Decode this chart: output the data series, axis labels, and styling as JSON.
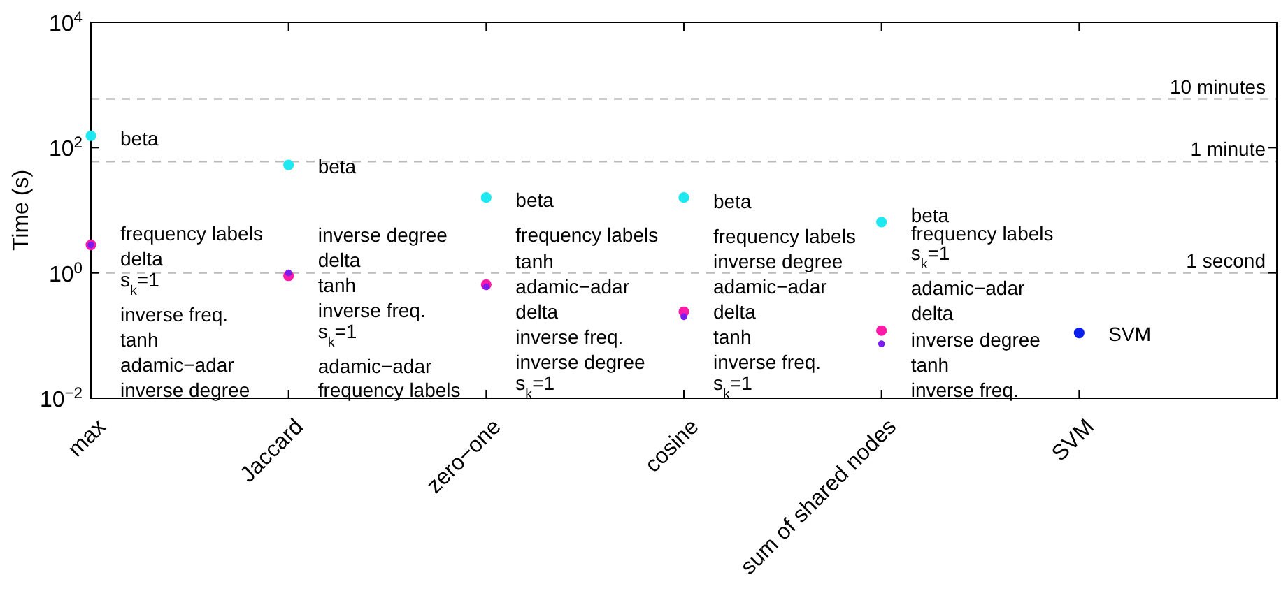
{
  "chart_data": {
    "type": "scatter",
    "ylabel": "Time (s)",
    "log": "y",
    "marker": "circle",
    "grid": false,
    "categories": [
      "max",
      "Jaccard",
      "zero−one",
      "cosine",
      "sum of shared nodes",
      "SVM"
    ],
    "ylim": [
      0.01,
      10000
    ],
    "yticks": [
      {
        "value": 0.01,
        "label": "10$^{−2}$"
      },
      {
        "value": 1,
        "label": "10$^{0}$"
      },
      {
        "value": 100,
        "label": "10$^{2}$"
      },
      {
        "value": 10000,
        "label": "10$^{4}$"
      }
    ],
    "series": [
      {
        "color": "#1ee8f0",
        "values": [
          155,
          53,
          16,
          16,
          6.5,
          null
        ]
      },
      {
        "color": "#7a1cf0",
        "values": [
          2.8,
          1.0,
          0.6,
          0.2,
          0.074,
          null
        ]
      },
      {
        "color": "#ff1aa8",
        "values": [
          2.8,
          0.9,
          0.65,
          0.24,
          0.12,
          null
        ]
      },
      {
        "color": "#0a1ef0",
        "values": [
          null,
          null,
          null,
          null,
          null,
          0.11
        ]
      }
    ],
    "ref_lines": [
      {
        "axis": "y",
        "value": 600,
        "label": "10 minutes",
        "color": "#bbbbbb",
        "line_style": "dashed"
      },
      {
        "axis": "y",
        "value": 60,
        "label": "1 minute",
        "color": "#bbbbbb",
        "line_style": "dashed"
      },
      {
        "axis": "y",
        "value": 1,
        "label": "1 second",
        "color": "#bbbbbb",
        "line_style": "dashed"
      }
    ],
    "annotations": [
      "beta",
      "frequency labels",
      "delta",
      "s$_{k}$=1",
      "inverse freq.",
      "tanh",
      "adamic−adar",
      "inverse degree",
      "beta",
      "inverse degree",
      "delta",
      "tanh",
      "inverse freq.",
      "s$_{k}$=1",
      "adamic−adar",
      "frequency labels",
      "beta",
      "frequency labels",
      "tanh",
      "adamic−adar",
      "delta",
      "inverse freq.",
      "inverse degree",
      "s$_{k}$=1",
      "beta",
      "frequency labels",
      "inverse degree",
      "adamic−adar",
      "delta",
      "tanh",
      "inverse freq.",
      "s$_{k}$=1",
      "beta",
      "frequency labels",
      "s$_{k}$=1",
      "adamic−adar",
      "delta",
      "inverse degree",
      "tanh",
      "inverse freq.",
      "SVM"
    ]
  }
}
